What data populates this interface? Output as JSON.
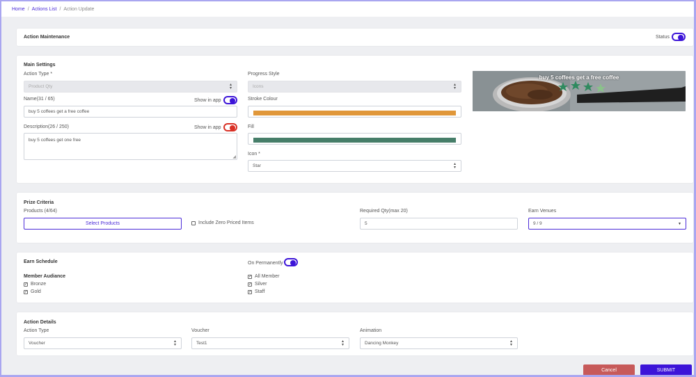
{
  "breadcrumb": {
    "home": "Home",
    "list": "Actions List",
    "current": "Action Update",
    "sep": "/"
  },
  "maintenance": {
    "title": "Action Maintenance",
    "status_label": "Status",
    "status_on": true
  },
  "main_settings": {
    "title": "Main Settings",
    "action_type_label": "Action Type *",
    "action_type_value": "Product Qty",
    "name_label": "Name(31 / 65)",
    "name_show_in_app": "Show in app",
    "name_value": "buy 5 coffees get a free coffee",
    "description_label": "Description(26 / 250)",
    "description_show_in_app": "Show in app",
    "description_value": "buy 5 coffees get one free",
    "progress_style_label": "Progress Style",
    "progress_style_value": "Icons",
    "stroke_label": "Stroke Colour",
    "stroke_color": "#e0973a",
    "fill_label": "Fill",
    "fill_color": "#467e69",
    "icon_label": "Icon *",
    "icon_value": "Star",
    "preview_text": "buy 5 coffees get a free coffee"
  },
  "prize": {
    "title": "Prize Criteria",
    "products_label": "Products (4/64)",
    "select_products": "Select Products",
    "zero_priced_label": "Include Zero Priced Items",
    "required_qty_label": "Required Qty(max 20)",
    "required_qty_value": "5",
    "earn_venues_label": "Earn Venues",
    "earn_venues_value": "9 / 9"
  },
  "earn_schedule": {
    "title": "Earn Schedule",
    "on_permanently_label": "On Permanently",
    "member_audience_label": "Member Audiance",
    "members": [
      "Bronze",
      "Gold",
      "All Member",
      "Silver",
      "Staff"
    ]
  },
  "action_details": {
    "title": "Action Details",
    "action_type_label": "Action Type",
    "action_type_value": "Voucher",
    "voucher_label": "Voucher",
    "voucher_value": "Test1",
    "animation_label": "Animation",
    "animation_value": "Dancing Monkey"
  },
  "buttons": {
    "cancel": "Cancel",
    "submit": "SUBMIT"
  },
  "colors": {
    "accent": "#3c14d8",
    "cancel": "#c75a5a",
    "toggle_off": "#d93025"
  }
}
